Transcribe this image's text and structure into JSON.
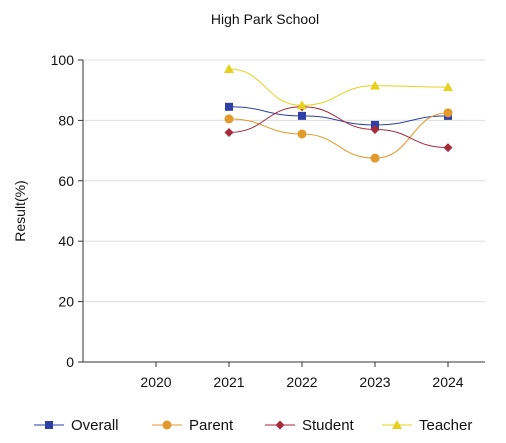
{
  "chart_data": {
    "type": "line",
    "title": "High Park School",
    "xlabel": "",
    "ylabel": "Result(%)",
    "categories": [
      "2020",
      "2021",
      "2022",
      "2023",
      "2024"
    ],
    "ylim": [
      0,
      100
    ],
    "yticks": [
      "0",
      "20",
      "40",
      "60",
      "80",
      "100"
    ],
    "grid": true,
    "legend_position": "bottom",
    "series": [
      {
        "name": "Overall",
        "color": "#2e3fa6",
        "marker": "square",
        "values": [
          null,
          84.5,
          81.5,
          78.5,
          81.5
        ]
      },
      {
        "name": "Parent",
        "color": "#e39a2d",
        "marker": "circle",
        "values": [
          null,
          80.5,
          75.5,
          67.5,
          82.5
        ]
      },
      {
        "name": "Student",
        "color": "#a52a3a",
        "marker": "diamond",
        "values": [
          null,
          76,
          84.5,
          77,
          71
        ]
      },
      {
        "name": "Teacher",
        "color": "#e6d21e",
        "marker": "triangle",
        "values": [
          null,
          97,
          85,
          91.5,
          91
        ]
      }
    ]
  }
}
